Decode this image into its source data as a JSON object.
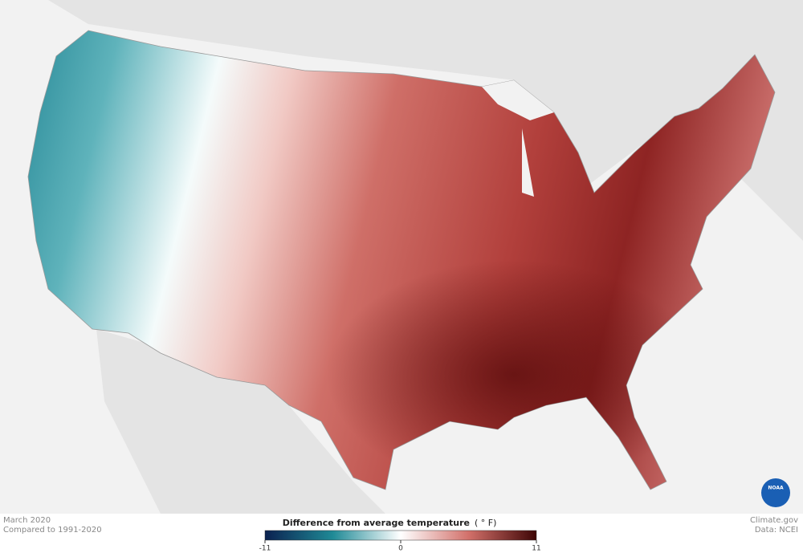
{
  "header": {
    "period": "March 2020",
    "baseline": "Compared to 1991-2020"
  },
  "credits": {
    "site": "Climate.gov",
    "source": "Data: NCEI",
    "logo": "NOAA"
  },
  "legend": {
    "title": "Difference from average temperature",
    "unit": "( ° F)",
    "min": -11,
    "max": 11,
    "ticks": [
      -11,
      0,
      11
    ]
  }
}
